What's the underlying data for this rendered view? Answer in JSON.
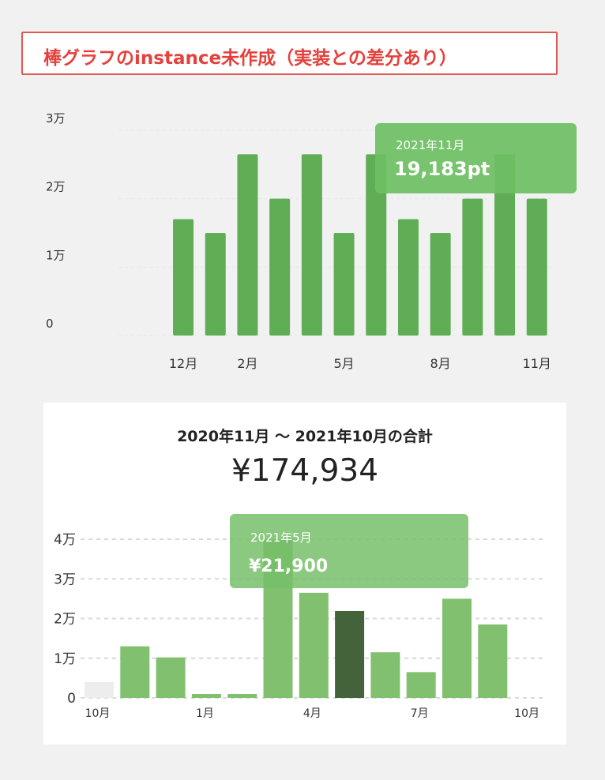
{
  "header": {
    "title": "棒グラフのinstance未作成（実装との差分あり）"
  },
  "chart_data": [
    {
      "type": "bar",
      "yticks": [
        "0",
        "1万",
        "2万",
        "3万"
      ],
      "ylim": [
        0,
        30000
      ],
      "xticks": [
        "12月",
        "2月",
        "5月",
        "8月",
        "11月"
      ],
      "values": [
        0,
        17000,
        15000,
        26500,
        20000,
        26500,
        15000,
        26500,
        17000,
        15000,
        20000,
        26500,
        20000
      ],
      "tooltip": {
        "label": "2021年11月",
        "value": "19,183pt"
      },
      "colors": {
        "bar": "#5fae55",
        "tooltip": "#6ebf64"
      }
    },
    {
      "type": "bar",
      "heading": "2020年11月 〜 2021年10月の合計",
      "total": "¥174,934",
      "yticks": [
        "0",
        "1万",
        "2万",
        "3万",
        "4万"
      ],
      "ylim": [
        0,
        40000
      ],
      "xticks": [
        "10月",
        "1月",
        "4月",
        "7月",
        "10月"
      ],
      "values": [
        4000,
        13000,
        10200,
        1000,
        1000,
        40000,
        26500,
        21900,
        11500,
        6500,
        25000,
        18500
      ],
      "highlight_index": 7,
      "tooltip": {
        "label": "2021年5月",
        "value": "¥21,900"
      },
      "colors": {
        "bar": "#81c06f",
        "highlight": "#44633a",
        "empty": "#ededed",
        "tooltip": "#76c068"
      }
    }
  ]
}
